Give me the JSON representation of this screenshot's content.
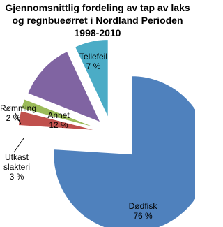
{
  "chart_data": {
    "type": "pie",
    "title": "Gjennomsnittlig fordeling av tap av laks og regnbueørret i Nordland Perioden 1998-2010",
    "categories": [
      "Dødfisk",
      "Utkast slakteri",
      "Rømming",
      "Annet",
      "Tellefeil"
    ],
    "values": [
      76,
      3,
      2,
      12,
      7
    ],
    "value_labels": [
      "76 %",
      "3 %",
      "2 %",
      "12 %",
      "7 %"
    ],
    "colors": [
      "#4f81bd",
      "#c0504d",
      "#9bbb59",
      "#8064a2",
      "#4bacc6"
    ]
  }
}
